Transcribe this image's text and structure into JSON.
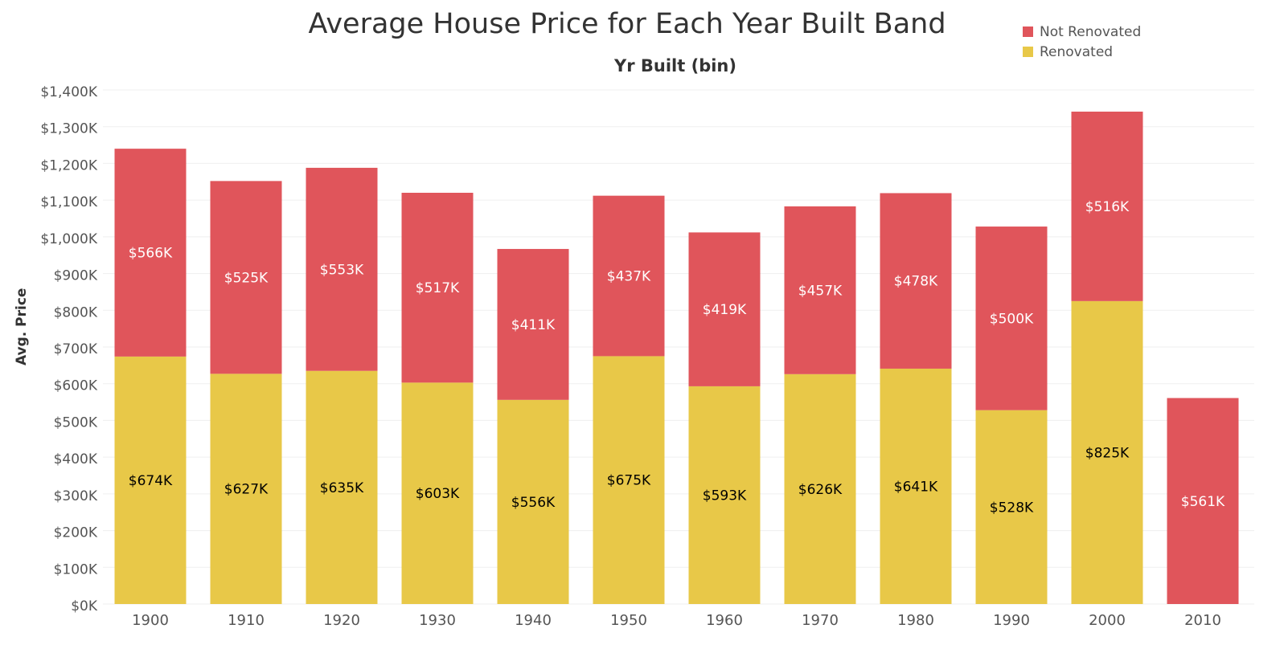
{
  "chart_data": {
    "type": "bar",
    "stacked": true,
    "title": "Average House Price for Each Year Built Band",
    "xlabel": "Yr Built (bin)",
    "ylabel": "Avg. Price",
    "ylim": [
      0,
      1400
    ],
    "y_unit": "K USD",
    "yticks": [
      0,
      100,
      200,
      300,
      400,
      500,
      600,
      700,
      800,
      900,
      1000,
      1100,
      1200,
      1300,
      1400
    ],
    "ytick_labels": [
      "$0K",
      "$100K",
      "$200K",
      "$300K",
      "$400K",
      "$500K",
      "$600K",
      "$700K",
      "$800K",
      "$900K",
      "$1,000K",
      "$1,100K",
      "$1,200K",
      "$1,300K",
      "$1,400K"
    ],
    "categories": [
      "1900",
      "1910",
      "1920",
      "1930",
      "1940",
      "1950",
      "1960",
      "1970",
      "1980",
      "1990",
      "2000",
      "2010"
    ],
    "series": [
      {
        "name": "Renovated",
        "color": "#e8c848",
        "label_color": "#000000",
        "values": [
          674,
          627,
          635,
          603,
          556,
          675,
          593,
          626,
          641,
          528,
          825,
          null
        ],
        "labels": [
          "$674K",
          "$627K",
          "$635K",
          "$603K",
          "$556K",
          "$675K",
          "$593K",
          "$626K",
          "$641K",
          "$528K",
          "$825K",
          null
        ]
      },
      {
        "name": "Not Renovated",
        "color": "#e0555b",
        "label_color": "#ffffff",
        "values": [
          566,
          525,
          553,
          517,
          411,
          437,
          419,
          457,
          478,
          500,
          516,
          561
        ],
        "labels": [
          "$566K",
          "$525K",
          "$553K",
          "$517K",
          "$411K",
          "$437K",
          "$419K",
          "$457K",
          "$478K",
          "$500K",
          "$516K",
          "$561K"
        ]
      }
    ],
    "legend_position": "top-right",
    "legend": [
      {
        "name": "Not Renovated",
        "color": "#e0555b"
      },
      {
        "name": "Renovated",
        "color": "#e8c848"
      }
    ],
    "grid": true
  }
}
